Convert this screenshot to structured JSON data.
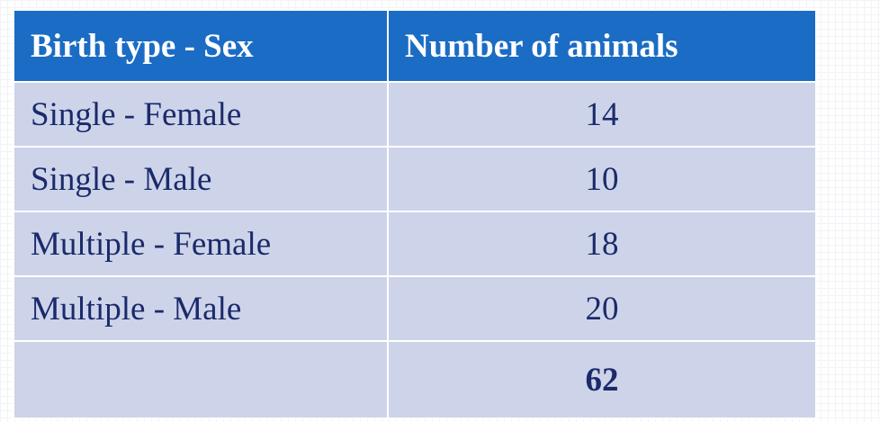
{
  "table": {
    "header": [
      "Birth type - Sex",
      "Number of animals"
    ],
    "rows": [
      [
        "Single - Female",
        14
      ],
      [
        "Single - Male",
        10
      ],
      [
        "Multiple - Female",
        18
      ],
      [
        "Multiple - Male",
        20
      ]
    ],
    "total": 62
  }
}
